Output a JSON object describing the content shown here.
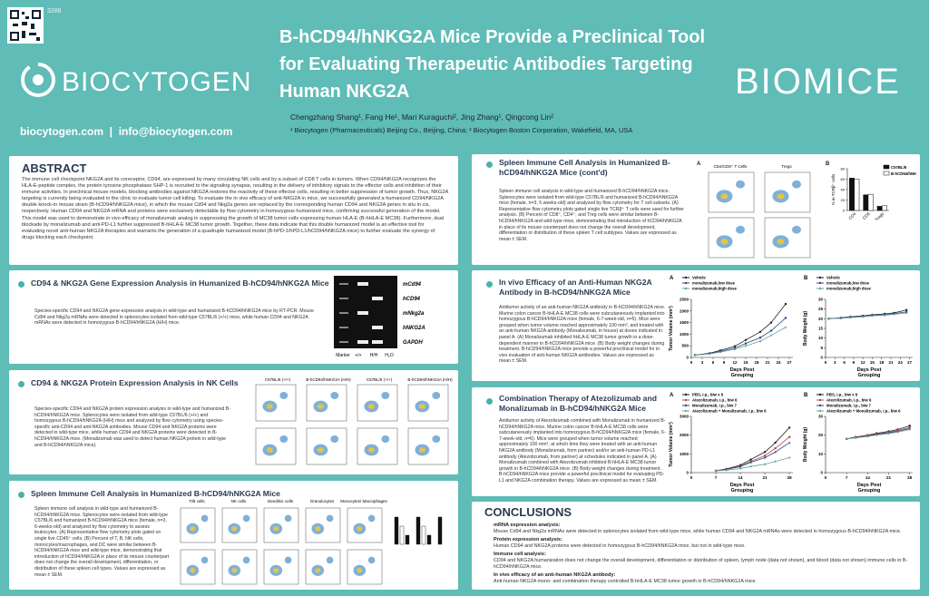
{
  "header": {
    "poster_id": "3286",
    "logo": "BIOCYTOGEN",
    "title": "B-hCD94/hNKG2A Mice Provide a Preclinical Tool for Evaluating Therapeutic Antibodies Targeting Human NKG2A",
    "brand": "BIOMICE",
    "authors": "Chengzhang Shang¹, Fang He¹, Mari Kuraguchi², Jing Zhang¹, Qingcong Lin²",
    "affiliations": "¹ Biocytogen (Pharmaceuticals) Beijing Co., Beijing, China; ² Biocytogen Boston Corporation, Wakefield, MA, USA",
    "contact": "biocytogen.com  |  info@biocytogen.com"
  },
  "abstract": {
    "heading": "ABSTRACT",
    "text": "The immune cell checkpoint NKG2A and its coreceptor, CD94, are expressed by many circulating NK cells and by a subset of CD8 T cells in tumors. When CD94/NKG2A recognizes the HLA-E-peptide complex, the protein tyrosine phosphatase SHP-1 is recruited to the signaling synapse, resulting in the delivery of inhibitory signals to the effector cells and inhibition of their immune activities. In preclinical mouse models, blocking antibodies against NKG2A restores the reactivity of these effector cells, resulting in better suppression of tumor growth. Thus, NKG2A targeting is currently being evaluated in the clinic to evaluate tumor cell killing. To evaluate the in vivo efficacy of anti-NKG2A in mice, we successfully generated a humanized CD94/NKG2A double knock-in mouse strain (B-hCD94/hNKG2A mice), in which the mouse Cd94 and Nkg2a genes are replaced by the corresponding human CD94 and NKG2A genes in situ in cis, respectively. Human CD94 and NKG2A mRNA and proteins were exclusively detectable by flow cytometry in homozygous humanized mice, confirming successful generation of the model. This model was used to demonstrate in vivo efficacy of monalizumab analog in suppressing the growth of MC38 tumor cells expressing human HLA-E (B-hHLA-E MC38). Furthermore, dual blockade by monalizumab and anti-PD-L1 further suppressed B-hHLA-E MC38 tumor growth. Together, these data indicate that this double humanized model is an effective tool for evaluating novel anti-human NKG2A therapies and warrants the generation of a quadruple humanized model (B-hPD-1/hPD-L1/hCD94/hNKG2A mice) to further evaluate the synergy of drugs blocking each checkpoint."
  },
  "gene": {
    "title": "CD94 & NKG2A Gene Expression Analysis in Humanized B-hCD94/hNKG2A Mice",
    "caption": "Species-specific CD94 and NKG2A gene expression analysis in wild-type and humanized B-hCD94/hNKG2A mice by RT-PCR. Mouse Cd94 and Nkg2a mRNAs were detected in splenocytes isolated from wild-type C57BL/6 (+/+) mice, while human CD94 and NKG2A mRNAs were detected in homozygous B-hCD94/hNKG2A (H/H) mice.",
    "gel_labels": [
      "mCd94",
      "hCD94",
      "mNkg2a",
      "hNKG2A",
      "GAPDH"
    ],
    "lanes": [
      "Marker",
      "+/+",
      "H/H",
      "H₂O"
    ]
  },
  "protein": {
    "title": "CD94 & NKG2A Protein Expression Analysis in NK Cells",
    "caption": "Species-specific CD94 and NKG2A protein expression analysis in wild-type and humanized B-hCD94/hNKG2A mice. Splenocytes were isolated from wild-type C57BL/6 (+/+) and homozygous B-hCD94/hNKG2A (H/H) mice and analyzed by flow cytometry using species-specific anti-CD94 and anti-NKG2A antibodies. Mouse CD94 and NKG2A proteins were detected in wild-type mice, while human CD94 and NKG2A proteins were detected in B-hCD94/hNKG2A mice. (Monalizumab was used to detect human NKG2A protein in wild-type and B-hCD94/hNKG2A mice).",
    "groups": [
      "C57BL/6 (+/+)",
      "B-hCD94/hNKG2A (H/H)",
      "C57BL/6 (+/+)",
      "B-hCD94/hNKG2A (H/H)"
    ]
  },
  "spleen": {
    "title": "Spleen Immune Cell Analysis in Humanized B-hCD94/hNKG2A Mice",
    "caption": "Spleen immune cell analysis in wild-type and humanized B-hCD94/hNKG2A mice. Splenocytes were isolated from wild-type C57BL/6 and humanized B-hCD94/hNKG2A mice (female, n=3, 6-weeks-old) and analyzed by flow cytometry to assess leukocytes. (A) Representative flow cytometry plots gated on single live CD45⁺ cells. (B) Percent of T, B, NK cells, monocytes/macrophages, and DC were similar between B-hCD94/hNKG2A mice and wild-type mice, demonstrating that introduction of hCD94/hNKG2A in place of its mouse counterpart does not change the overall development, differentiation, or distribution of these spleen cell types. Values are expressed as mean ± SEM.",
    "plots": [
      "T/B cells",
      "NK cells",
      "Dendritic cells",
      "Granulocytes",
      "Monocytes/ Macrophages"
    ]
  },
  "spleen2": {
    "title": "Spleen Immune Cell Analysis in Humanized B-hCD94/hNKG2A Mice (cont'd)",
    "caption": "Spleen immune cell analysis in wild-type and humanized B-hCD94/hNKG2A mice. Splenocytes were isolated from wild-type C57BL/6 and humanized B-hCD94/hNKG2A mice (female, n=3, 6 weeks-old) and analyzed by flow cytometry for T cell subsets. (A) Representative flow cytometry plots gated single live TCRβ⁺ T cells were used for further analysis. (B) Percent of CD8⁺, CD4⁺, and Treg cells were similar between B-hCD94/hNKG2A and wild-type mice, demonstrating that introduction of hCD94/hNKG2A in place of its mouse counterpart does not change the overall development, differentiation or distribution of these spleen T cell subtypes. Values are expressed as mean ± SEM.",
    "panel_a": "A",
    "panel_b": "B",
    "plots": [
      "CD4/CD8⁺ T Cells",
      "Tregs"
    ],
    "chart": {
      "ylabel": "% in TCRβ⁺ cells",
      "categories": [
        "CD4",
        "CD8",
        "Tregs"
      ],
      "series": [
        {
          "name": "C57BL/6",
          "color": "#111111",
          "values": [
            62,
            30,
            8
          ]
        },
        {
          "name": "B-hCD94/hNKG2A",
          "color": "#ffffff",
          "values": [
            60,
            31,
            9
          ]
        }
      ],
      "ylim": [
        0,
        80
      ],
      "yticks": [
        0,
        20,
        40,
        60,
        80
      ]
    }
  },
  "efficacy": {
    "title": "In vivo Efficacy of an Anti-Human NKG2A Antibody in B-hCD94/hNKG2A Mice",
    "caption": "Antitumor activity of an anti-human NKG2A antibody in B-hCD94/hNKG2A mice. Murine colon cancer B-hHLA-E MC38 cells were subcutaneously implanted into homozygous B-hCD94/hNKG2A mice (female, 6-7-week-old, n=5). Mice were grouped when tumor volume reached approximately 100 mm³, and treated with an anti-human NKG2A antibody (Monalizumab, in house) at doses indicated in panel A. (A) Monalizumab inhibited hHLA-E MC38 tumor growth in a dose-dependent manner in B-hCD94/hNKG2A mice. (B) Body weight changes during treatment. B-hCD94/hNKG2A mice provide a powerful preclinical model for in vivo evaluation of anti-human NKG2A antibodies. Values are expressed as mean ± SEM.",
    "charts": [
      {
        "panel": "A",
        "ylabel": "Tumor Volume (mm³)",
        "xlabel": "Days Post Grouping",
        "x": [
          1,
          5,
          8,
          12,
          15,
          19,
          22,
          26
        ],
        "xlim": [
          0,
          28
        ],
        "xticks": [
          0,
          3,
          6,
          9,
          12,
          15,
          18,
          21,
          24,
          27
        ],
        "ylim": [
          0,
          2500
        ],
        "yticks": [
          0,
          500,
          1000,
          1500,
          2000,
          2500
        ],
        "series": [
          {
            "name": "Vehicle",
            "color": "#222222",
            "values": [
              100,
              180,
              300,
              480,
              750,
              1100,
              1500,
              2300
            ]
          },
          {
            "name": "monalizumab,low dose",
            "color": "#2b4a8b",
            "values": [
              100,
              160,
              260,
              400,
              600,
              850,
              1150,
              1700
            ]
          },
          {
            "name": "monalizumab,high dose",
            "color": "#6aa39b",
            "values": [
              100,
              150,
              230,
              350,
              500,
              700,
              950,
              1300
            ]
          }
        ]
      },
      {
        "panel": "B",
        "ylabel": "Body Weight (g)",
        "xlabel": "Days Post Grouping",
        "x": [
          1,
          5,
          8,
          12,
          15,
          19,
          22,
          26
        ],
        "xlim": [
          0,
          28
        ],
        "xticks": [
          0,
          3,
          6,
          9,
          12,
          15,
          18,
          21,
          24,
          27
        ],
        "ylim": [
          0,
          30
        ],
        "yticks": [
          0,
          5,
          10,
          15,
          20,
          25,
          30
        ],
        "series": [
          {
            "name": "Vehicle",
            "color": "#222222",
            "values": [
              20,
              20.5,
              21,
              21.5,
              22,
              22.5,
              23,
              24.5
            ]
          },
          {
            "name": "monalizumab,low dose",
            "color": "#2b4a8b",
            "values": [
              20,
              20.3,
              20.8,
              21.2,
              21.8,
              22,
              22.6,
              23.5
            ]
          },
          {
            "name": "monalizumab,high dose",
            "color": "#6aa39b",
            "values": [
              20,
              20.2,
              20.6,
              21,
              21.5,
              21.8,
              22.3,
              23
            ]
          }
        ]
      }
    ]
  },
  "combo": {
    "title": "Combination Therapy of Atezolizumab and Monalizumab in B-hCD94/hNKG2A Mice",
    "caption": "Antitumor activity of Atezolizumab combined with Monalizumab in humanized B-hCD94/hNKG2A mice. Murine colon cancer B-hHLA-E MC38 cells were subcutaneously implanted into homozygous B-hCD94/hNKG2A mice (female, 6-7-week-old, n=6). Mice were grouped when tumor volume reached approximately 100 mm³, at which time they were treated with an anti-human NKG2A antibody (Monalizumab, from partner) and/or an anti-human PD-L1 antibody (Atezolizumab, from partner) at schedules indicated in panel A. (A) Monalizumab combined with Atezolizumab inhibited B-hHLA-E MC38 tumor growth in B-hCD94/hNKG2A mice. (B) Body weight changes during treatment. B-hCD94/hNKG2A mice provide a powerful preclinical model for evaluating PD-L1 and NKG2A combination therapy. Values are expressed as mean ± SEM.",
    "charts": [
      {
        "panel": "A",
        "ylabel": "Tumor Volume (mm³)",
        "xlabel": "Days Post Grouping",
        "x": [
          7,
          10,
          14,
          17,
          21,
          24,
          28
        ],
        "xlim": [
          0,
          29
        ],
        "xticks": [
          0,
          7,
          14,
          21,
          28
        ],
        "ylim": [
          0,
          3000
        ],
        "yticks": [
          0,
          1000,
          2000,
          3000
        ],
        "series": [
          {
            "name": "PBS, i.p., biw x 6",
            "color": "#222222",
            "values": [
              100,
              200,
              400,
              700,
              1100,
              1600,
              2400
            ]
          },
          {
            "name": "Atezolizumab, i.p., biw 6",
            "color": "#b04a4a",
            "values": [
              100,
              180,
              350,
              600,
              900,
              1300,
              1900
            ]
          },
          {
            "name": "Monalizumab, i.p., biw 7",
            "color": "#2b4a8b",
            "values": [
              100,
              170,
              320,
              550,
              800,
              1100,
              1600
            ]
          },
          {
            "name": "Atezolizumab + Monalizumab, i.p., biw 6",
            "color": "#6aa39b",
            "values": [
              100,
              130,
              220,
              330,
              450,
              600,
              800
            ]
          }
        ]
      },
      {
        "panel": "B",
        "ylabel": "Body Weight (g)",
        "xlabel": "Days Post Grouping",
        "x": [
          7,
          10,
          14,
          17,
          21,
          24,
          28
        ],
        "xlim": [
          0,
          29
        ],
        "xticks": [
          0,
          7,
          14,
          21,
          28
        ],
        "ylim": [
          0,
          30
        ],
        "yticks": [
          0,
          10,
          20,
          30
        ],
        "series": [
          {
            "name": "PBS, i.p., biw x 6",
            "color": "#222222",
            "values": [
              18,
              19,
              20,
              21,
              22,
              23,
              25
            ]
          },
          {
            "name": "Atezolizumab, i.p., biw 6",
            "color": "#b04a4a",
            "values": [
              18,
              18.8,
              19.8,
              20.6,
              21.5,
              22.5,
              24
            ]
          },
          {
            "name": "Monalizumab, i.p., biw 7",
            "color": "#2b4a8b",
            "values": [
              18,
              18.6,
              19.5,
              20.3,
              21.2,
              22,
              23.5
            ]
          },
          {
            "name": "Atezolizumab + Monalizumab, i.p., biw 6",
            "color": "#6aa39b",
            "values": [
              18,
              18.5,
              19.3,
              20,
              20.8,
              21.6,
              23
            ]
          }
        ]
      }
    ]
  },
  "conclusions": {
    "heading": "CONCLUSIONS",
    "items": [
      {
        "head": "mRNA expression analysis:",
        "text": "Mouse Cd94 and Nkg2a mRNAs were detected in splenocytes isolated from wild-type mice, while human CD94 and NKG2A mRNAs were detected in homozygous B-hCD94/hNKG2A mice."
      },
      {
        "head": "Protein expression analysis:",
        "text": "Human CD94 and NKG2A proteins were detected in homozygous B-hCD94/hNKG2A mice, but not in wild-type mice."
      },
      {
        "head": "Immune cell analysis:",
        "text": "CD94 and NKG2A humanization does not change the overall development, differentiation or distribution of spleen, lymph node (data not shown), and blood (data not shown) immune cells in B-hCD94/hNKG2A mice."
      },
      {
        "head": "In vivo efficacy of an anti-human NKG2A antibody:",
        "text": "Anti-human NKG2A mono- and combination therapy controlled B-hHLA-E MC38 tumor growth in B-hCD94/hNKG2A mice."
      }
    ]
  }
}
